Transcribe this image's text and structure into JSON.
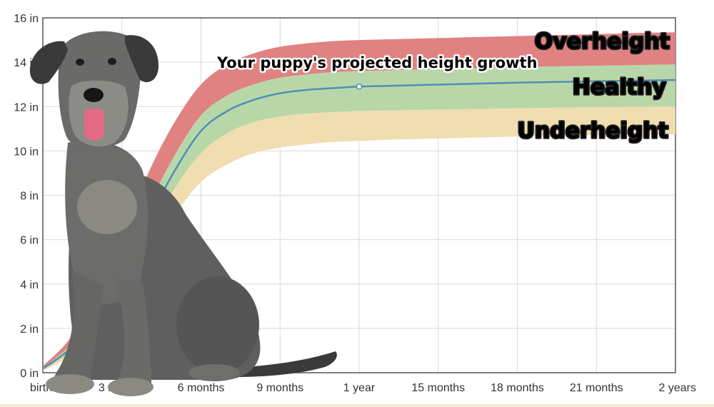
{
  "chart_data": {
    "type": "area",
    "title": "",
    "xlabel": "",
    "ylabel": "",
    "xlim": [
      0,
      24
    ],
    "ylim": [
      0,
      16
    ],
    "grid": true,
    "y_ticks": [
      {
        "value": 0,
        "label": "0 in"
      },
      {
        "value": 2,
        "label": "2 in"
      },
      {
        "value": 4,
        "label": "4 in"
      },
      {
        "value": 6,
        "label": "6 in"
      },
      {
        "value": 8,
        "label": "8 in"
      },
      {
        "value": 10,
        "label": "10 in"
      },
      {
        "value": 12,
        "label": "12 in"
      },
      {
        "value": 14,
        "label": "14 in"
      },
      {
        "value": 16,
        "label": "16 in"
      }
    ],
    "x_ticks": [
      {
        "value": 0,
        "label": "birth"
      },
      {
        "value": 3,
        "label": "3 months"
      },
      {
        "value": 6,
        "label": "6 months"
      },
      {
        "value": 9,
        "label": "9 months"
      },
      {
        "value": 12,
        "label": "1 year"
      },
      {
        "value": 15,
        "label": "15 months"
      },
      {
        "value": 18,
        "label": "18 months"
      },
      {
        "value": 21,
        "label": "21 months"
      },
      {
        "value": 24,
        "label": "2 years"
      }
    ],
    "x": [
      0,
      1,
      2,
      3,
      4,
      5,
      6,
      7,
      8,
      9,
      10,
      11,
      12,
      13,
      14,
      15,
      16,
      17,
      18,
      19,
      20,
      21,
      22,
      23,
      24
    ],
    "bands": [
      {
        "name": "Overheight",
        "color": "#e08282",
        "lower": [
          0.2,
          1.2,
          2.8,
          5.0,
          7.5,
          9.8,
          11.6,
          12.5,
          13.0,
          13.3,
          13.45,
          13.55,
          13.6,
          13.63,
          13.66,
          13.69,
          13.72,
          13.75,
          13.78,
          13.8,
          13.82,
          13.84,
          13.86,
          13.88,
          13.9
        ],
        "upper": [
          0.3,
          1.5,
          3.5,
          6.0,
          9.0,
          11.3,
          13.0,
          13.9,
          14.4,
          14.7,
          14.85,
          14.95,
          15.0,
          15.03,
          15.06,
          15.09,
          15.12,
          15.15,
          15.18,
          15.21,
          15.24,
          15.27,
          15.3,
          15.33,
          15.35
        ]
      },
      {
        "name": "Healthy",
        "color": "#b8d7a8",
        "lower": [
          0.15,
          0.9,
          2.2,
          4.0,
          6.2,
          8.3,
          9.9,
          10.8,
          11.3,
          11.55,
          11.68,
          11.75,
          11.8,
          11.82,
          11.84,
          11.86,
          11.88,
          11.9,
          11.92,
          11.94,
          11.96,
          11.97,
          11.98,
          11.99,
          12.0
        ],
        "upper": [
          0.2,
          1.2,
          2.8,
          5.0,
          7.5,
          9.8,
          11.6,
          12.5,
          13.0,
          13.3,
          13.45,
          13.55,
          13.6,
          13.63,
          13.66,
          13.69,
          13.72,
          13.75,
          13.78,
          13.8,
          13.82,
          13.84,
          13.86,
          13.88,
          13.9
        ]
      },
      {
        "name": "Underheight",
        "color": "#f0ddb0",
        "lower": [
          0.1,
          0.7,
          1.7,
          3.2,
          5.2,
          7.1,
          8.6,
          9.4,
          9.9,
          10.15,
          10.3,
          10.4,
          10.45,
          10.5,
          10.53,
          10.56,
          10.59,
          10.62,
          10.65,
          10.67,
          10.69,
          10.71,
          10.73,
          10.74,
          10.75
        ],
        "upper": [
          0.15,
          0.9,
          2.2,
          4.0,
          6.2,
          8.3,
          9.9,
          10.8,
          11.3,
          11.55,
          11.68,
          11.75,
          11.8,
          11.82,
          11.84,
          11.86,
          11.88,
          11.9,
          11.92,
          11.94,
          11.96,
          11.97,
          11.98,
          11.99,
          12.0
        ]
      }
    ],
    "series": [
      {
        "name": "Your puppy's projected height growth",
        "color": "#4f8fb6",
        "values": [
          0.18,
          1.05,
          2.5,
          4.5,
          6.9,
          9.1,
          10.9,
          11.8,
          12.3,
          12.6,
          12.75,
          12.83,
          12.9,
          12.93,
          12.96,
          12.99,
          13.02,
          13.05,
          13.08,
          13.1,
          13.12,
          13.14,
          13.16,
          13.18,
          13.2
        ],
        "marker": {
          "x": 12,
          "y": 12.9
        }
      }
    ],
    "annotations": {
      "overheight": "Overheight",
      "healthy": "Healthy",
      "underheight": "Underheight",
      "projection": "Your puppy's projected height growth"
    },
    "colors": {
      "overheight_text": "#e8412f",
      "healthy_text": "#2fd82f",
      "underheight_text": "#f2ea2a",
      "projection_text": "#3b8fd0",
      "grid": "#d9d9d9",
      "axis": "#555555"
    }
  },
  "image": {
    "subject": "dog-photo"
  }
}
